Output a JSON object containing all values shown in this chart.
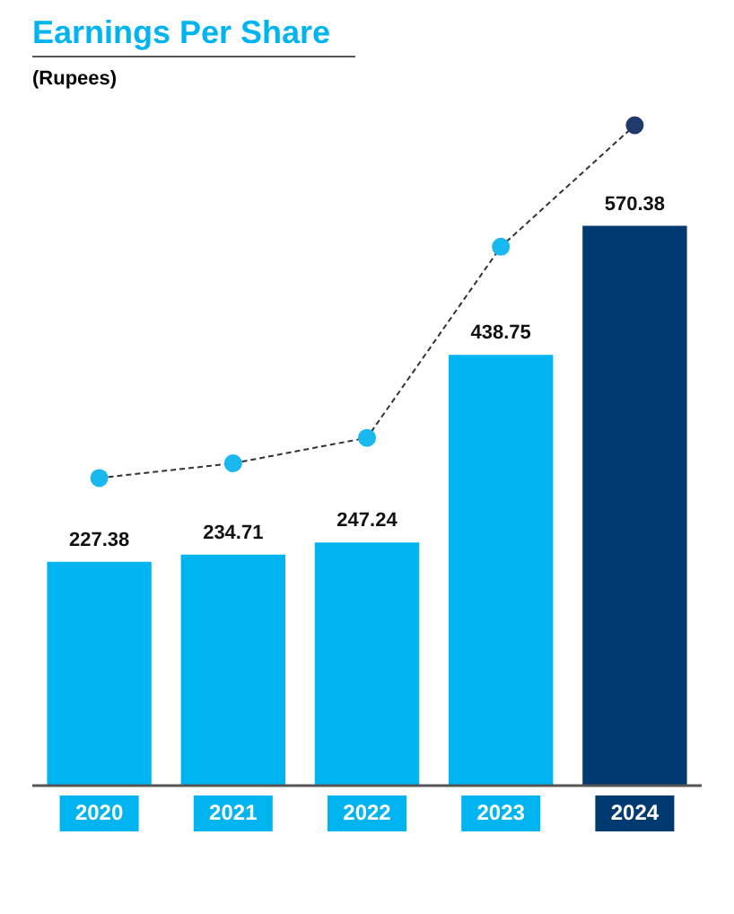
{
  "chart_data": {
    "type": "bar",
    "title": "Earnings Per Share",
    "subtitle": "(Rupees)",
    "categories": [
      "2020",
      "2021",
      "2022",
      "2023",
      "2024"
    ],
    "series": [
      {
        "colors": [
          "#00b5ef",
          "#00b5ef",
          "#00b5ef",
          "#00b5ef",
          "#003a70"
        ],
        "values": [
          227.38,
          234.71,
          247.24,
          438.75,
          570.38
        ],
        "value_labels": [
          "227.38",
          "234.71",
          "247.24",
          "438.75",
          "570.38"
        ]
      },
      {
        "type": "line",
        "color": "#333333",
        "colors": [
          "#19b8ee",
          "#19b8ee",
          "#19b8ee",
          "#19b8ee",
          "#1f3a6b"
        ],
        "values": [
          313,
          328,
          354,
          549,
          673
        ]
      }
    ],
    "grid": false,
    "legend": false,
    "tick_labels": "x",
    "marker": "circle",
    "line_style": "dashed"
  }
}
